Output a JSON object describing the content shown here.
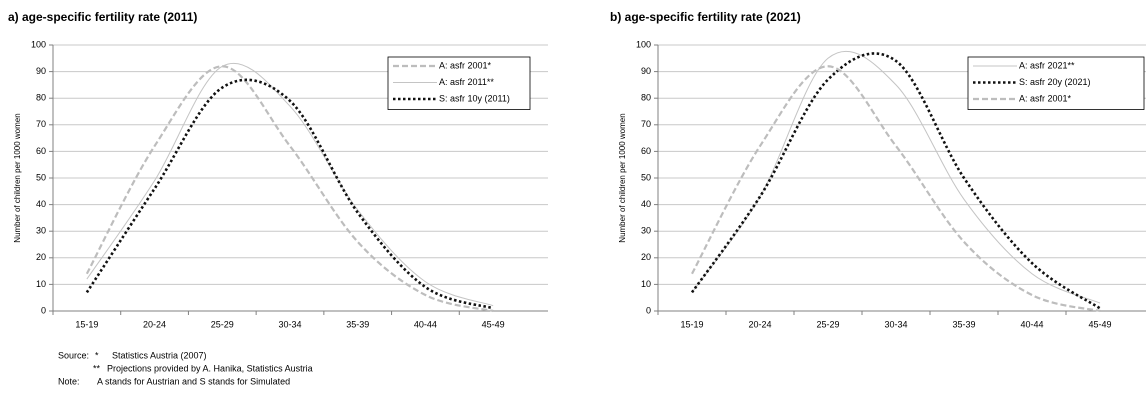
{
  "chart_data": [
    {
      "type": "line",
      "title": "a) age-specific fertility rate (2011)",
      "ylabel": "Number of children per 1000 women",
      "categories": [
        "15-19",
        "20-24",
        "25-29",
        "30-34",
        "35-39",
        "40-44",
        "45-49"
      ],
      "ylim": [
        0,
        100
      ],
      "yticks": [
        0,
        10,
        20,
        30,
        40,
        50,
        60,
        70,
        80,
        90,
        100
      ],
      "grid": true,
      "legend": "upper right",
      "series": [
        {
          "name": "A: asfr 2001*",
          "color": "#bdbdbd",
          "style": "dashed",
          "values": [
            14,
            62,
            92,
            62,
            26,
            6,
            0
          ]
        },
        {
          "name": "A: asfr 2011**",
          "color": "#c4c4c4",
          "style": "solid",
          "values": [
            12,
            49,
            92,
            77,
            38,
            11,
            2
          ]
        },
        {
          "name": "S: asfr 10y (2011)",
          "color": "#111111",
          "style": "dotted",
          "values": [
            7,
            46,
            84,
            79,
            37,
            9,
            1
          ]
        }
      ]
    },
    {
      "type": "line",
      "title": "b) age-specific fertility rate (2021)",
      "ylabel": "Number of children per 1000 women",
      "categories": [
        "15-19",
        "20-24",
        "25-29",
        "30-34",
        "35-39",
        "40-44",
        "45-49"
      ],
      "ylim": [
        0,
        100
      ],
      "yticks": [
        0,
        10,
        20,
        30,
        40,
        50,
        60,
        70,
        80,
        90,
        100
      ],
      "grid": true,
      "legend": "upper right",
      "series": [
        {
          "name": "A: asfr 2021**",
          "color": "#c4c4c4",
          "style": "solid",
          "values": [
            7,
            43,
            95,
            85,
            42,
            14,
            3
          ]
        },
        {
          "name": "S: asfr 20y (2021)",
          "color": "#111111",
          "style": "dotted",
          "values": [
            7,
            43,
            87,
            94,
            50,
            18,
            1
          ]
        },
        {
          "name": "A: asfr 2001*",
          "color": "#bdbdbd",
          "style": "dashed",
          "values": [
            14,
            62,
            92,
            62,
            26,
            6,
            0
          ]
        }
      ]
    }
  ],
  "source": {
    "label": "Source:",
    "items": [
      {
        "marker": "*",
        "text": "Statistics Austria (2007)"
      },
      {
        "marker": "**",
        "text": "Projections provided by A. Hanika, Statistics Austria"
      }
    ]
  },
  "note": {
    "label": "Note:",
    "text": "A  stands for Austrian and  S  stands for Simulated"
  }
}
